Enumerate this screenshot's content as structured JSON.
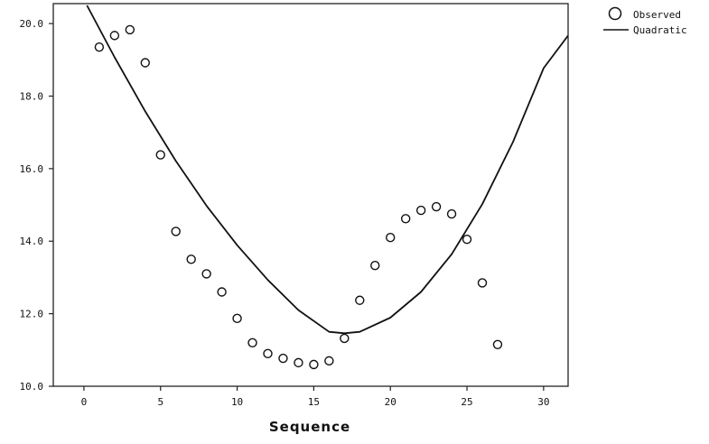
{
  "chart_data": {
    "type": "scatter",
    "title": "",
    "xlabel": "Sequence",
    "ylabel": "",
    "xlim": [
      -2,
      31.6
    ],
    "ylim": [
      10.0,
      20.55
    ],
    "x_ticks": [
      0,
      5,
      10,
      15,
      20,
      25,
      30
    ],
    "x_tick_labels": [
      "0",
      "5",
      "10",
      "15",
      "20",
      "25",
      "30"
    ],
    "y_ticks": [
      10,
      12,
      14,
      16,
      18,
      20
    ],
    "y_tick_labels": [
      "10.0",
      "12.0",
      "14.0",
      "16.0",
      "18.0",
      "20.0"
    ],
    "grid": false,
    "legend_position": "top-right",
    "series": [
      {
        "name": "Observed",
        "kind": "points",
        "x": [
          1,
          2,
          3,
          4,
          5,
          6,
          7,
          8,
          9,
          10,
          11,
          12,
          13,
          14,
          15,
          16,
          17,
          18,
          19,
          20,
          21,
          22,
          23,
          24,
          25,
          26,
          27
        ],
        "y": [
          19.35,
          19.67,
          19.83,
          18.92,
          16.38,
          14.27,
          13.5,
          13.1,
          12.6,
          11.87,
          11.2,
          10.9,
          10.77,
          10.65,
          10.6,
          10.7,
          11.32,
          12.37,
          13.33,
          14.1,
          14.62,
          14.85,
          14.95,
          14.75,
          14.05,
          12.85,
          11.15
        ]
      },
      {
        "name": "Quadratic",
        "kind": "line",
        "x": [
          0.2,
          2,
          4,
          6,
          8,
          10,
          12,
          14,
          16,
          17,
          18,
          20,
          22,
          24,
          26,
          28,
          30,
          31.6
        ],
        "y": [
          20.5,
          19.07,
          17.58,
          16.21,
          14.98,
          13.89,
          12.93,
          12.1,
          11.5,
          11.46,
          11.5,
          11.89,
          12.6,
          13.64,
          15.02,
          16.73,
          18.77,
          19.67
        ]
      }
    ]
  }
}
